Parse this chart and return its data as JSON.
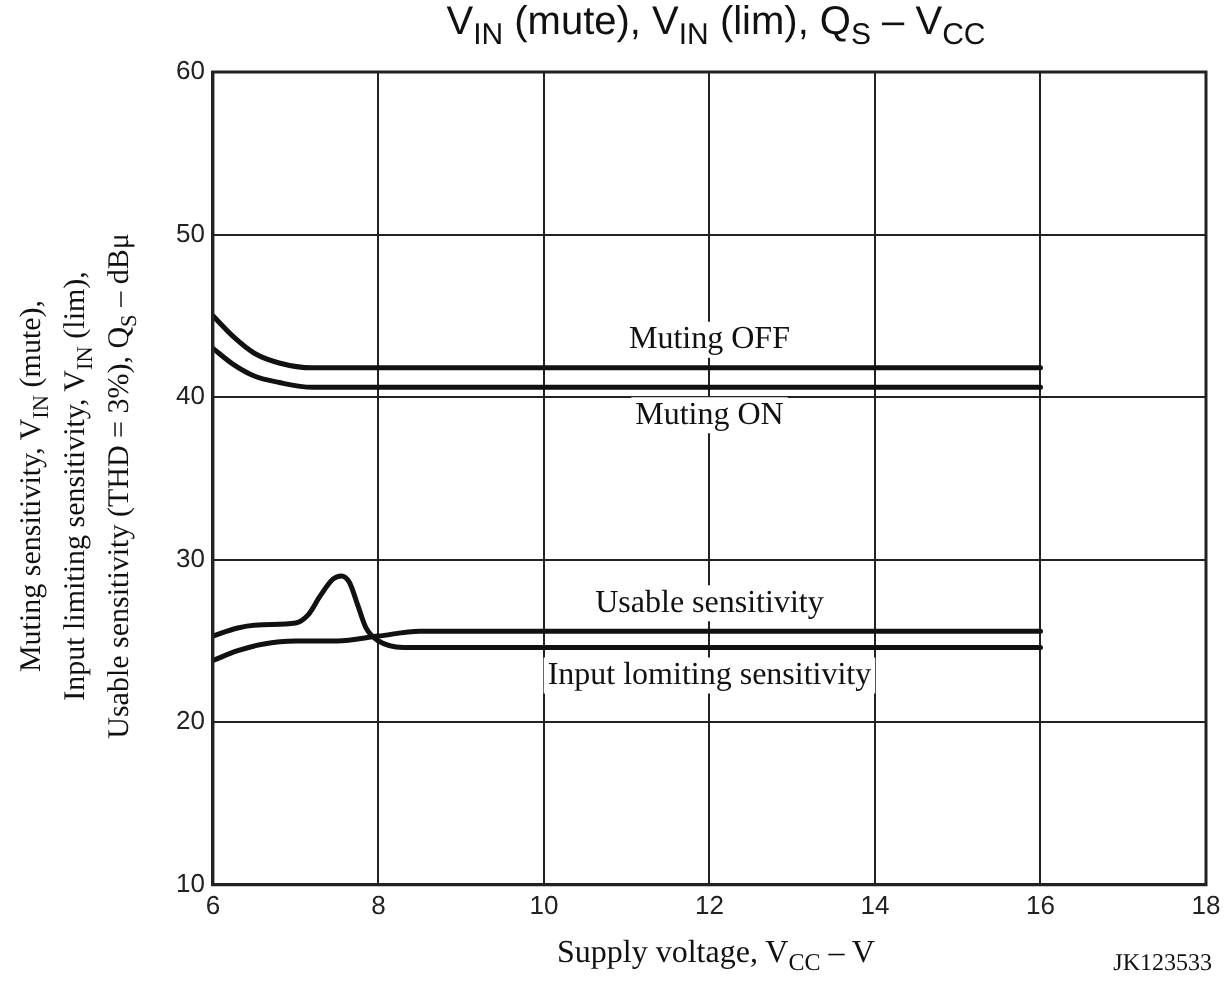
{
  "chart_data": {
    "type": "line",
    "title": "V$_{IN}$ (mute), V$_{IN}$ (lim), Q$_{S}$ – V$_{CC}$",
    "xlabel": "Supply voltage, V$_{CC}$ – V",
    "ylabel": "Muting sensitivity, V$_{IN}$ (mute),\nInput limiting sensitivity, V$_{IN}$ (lim),\nUsable sensitivity (THD = 3%), Q$_{S}$ – dBμ",
    "xlim": [
      6,
      18
    ],
    "xticks": [
      6,
      8,
      10,
      12,
      14,
      16,
      18
    ],
    "ylim": [
      10,
      60
    ],
    "yticks": [
      10,
      20,
      30,
      40,
      50,
      60
    ],
    "grid": true,
    "legend": false,
    "marker": "none",
    "line_style": "solid",
    "series": [
      {
        "name": "Muting OFF",
        "color": "#111111",
        "x": [
          6,
          6.25,
          6.5,
          6.8,
          7.2,
          16
        ],
        "values": [
          45,
          43.7,
          42.7,
          42.1,
          41.8,
          41.8
        ]
      },
      {
        "name": "Muting ON",
        "color": "#111111",
        "x": [
          6,
          6.25,
          6.5,
          6.8,
          7.2,
          16
        ],
        "values": [
          43,
          42,
          41.3,
          40.9,
          40.6,
          40.6
        ]
      },
      {
        "name": "Input lomiting sensitivity",
        "color": "#111111",
        "x": [
          6,
          6.3,
          6.6,
          7,
          7.15,
          7.3,
          7.45,
          7.55,
          7.65,
          7.75,
          7.85,
          8,
          8.3,
          16
        ],
        "values": [
          25.3,
          25.8,
          26,
          26.1,
          26.6,
          27.8,
          28.8,
          29,
          28.6,
          27.2,
          25.8,
          25,
          24.6,
          24.6
        ]
      },
      {
        "name": "Usable sensitivity",
        "color": "#111111",
        "x": [
          6,
          6.3,
          6.6,
          7,
          7.5,
          8,
          8.5,
          16
        ],
        "values": [
          23.8,
          24.4,
          24.8,
          25,
          25,
          25.3,
          25.6,
          25.6
        ]
      }
    ],
    "annotations": [
      "JK123533"
    ]
  }
}
